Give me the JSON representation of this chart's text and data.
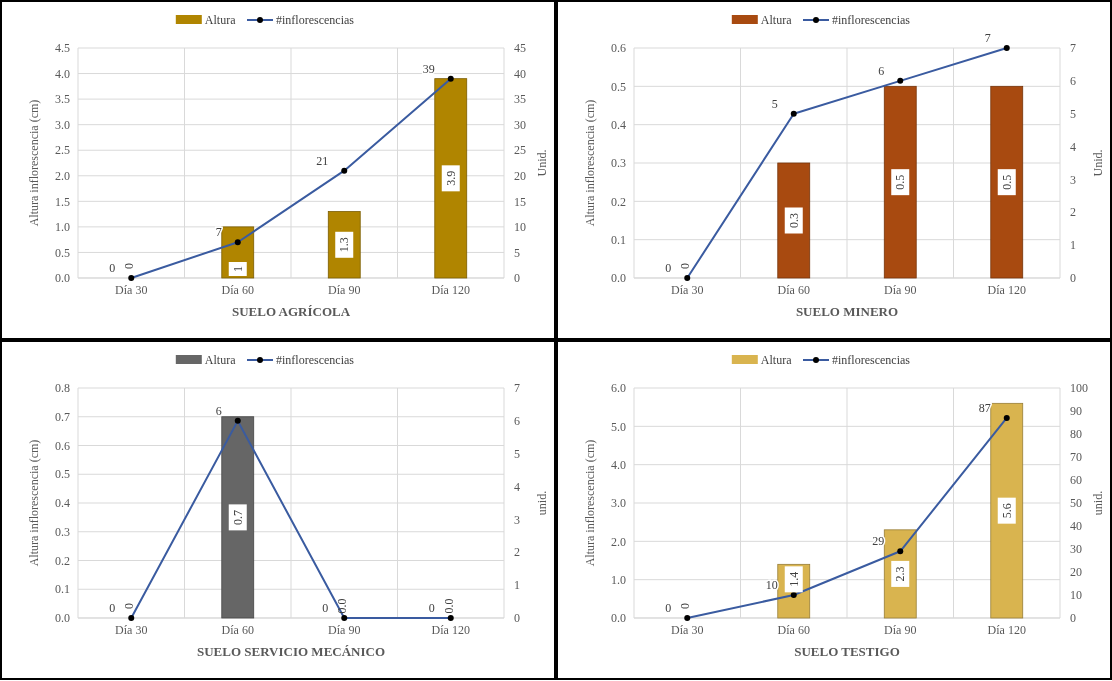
{
  "chart_data": [
    {
      "type": "bar",
      "xlabel": "SUELO AGRÍCOLA",
      "ylabel": "Altura inflorescencia (cm)",
      "y2label": "Unid.",
      "categories": [
        "Día 30",
        "Día 60",
        "Día 90",
        "Día 120"
      ],
      "series": [
        {
          "name": "Altura",
          "color": "#b08500",
          "values": [
            0,
            1,
            1.3,
            3.9
          ],
          "value_labels": [
            "0",
            "1",
            "1.3",
            "3.9"
          ]
        },
        {
          "name": "#inflorescencias",
          "type": "line",
          "axis": "y2",
          "color": "#3a5ba0",
          "values": [
            0,
            7,
            21,
            39
          ],
          "value_labels": [
            "0",
            "7",
            "21",
            "39"
          ]
        }
      ],
      "ylim": [
        0,
        4.5
      ],
      "yticks": [
        {
          "value": 0,
          "label": "0.0"
        },
        0.5,
        {
          "value": 1,
          "label": "1.0"
        },
        1.5,
        {
          "value": 2,
          "label": "2.0"
        },
        2.5,
        {
          "value": 3,
          "label": "3.0"
        },
        3.5,
        {
          "value": 4,
          "label": "4.0"
        },
        4.5
      ],
      "y2lim": [
        0,
        45
      ],
      "y2ticks": [
        0,
        5,
        10,
        15,
        20,
        25,
        30,
        35,
        40,
        45
      ],
      "grid": true,
      "legend": "top",
      "marker": "circle",
      "line_style": "solid"
    },
    {
      "type": "bar",
      "xlabel": "SUELO MINERO",
      "ylabel": "Altura inflorescencia (cm)",
      "y2label": "Unid.",
      "categories": [
        "Día 30",
        "Día 60",
        "Día 90",
        "Día 120"
      ],
      "series": [
        {
          "name": "Altura",
          "color": "#a84a10",
          "values": [
            0,
            0.3,
            0.5,
            0.5
          ],
          "value_labels": [
            "0",
            "0.3",
            "0.5",
            "0.5"
          ]
        },
        {
          "name": "#inflorescencias",
          "type": "line",
          "axis": "y2",
          "color": "#3a5ba0",
          "values": [
            0,
            5,
            6,
            7
          ],
          "value_labels": [
            "0",
            "5",
            "6",
            "7"
          ]
        }
      ],
      "ylim": [
        0,
        0.6
      ],
      "yticks": [
        {
          "value": 0,
          "label": "0.0"
        },
        0.1,
        0.2,
        0.3,
        0.4,
        0.5,
        0.6
      ],
      "y2lim": [
        0,
        7
      ],
      "y2ticks": [
        0,
        1,
        2,
        3,
        4,
        5,
        6,
        7
      ],
      "grid": true,
      "legend": "top",
      "marker": "circle",
      "line_style": "solid"
    },
    {
      "type": "bar",
      "xlabel": "SUELO SERVICIO MECÁNICO",
      "ylabel": "Altura inflorescencia (cm)",
      "y2label": "unid.",
      "categories": [
        "Día 30",
        "Día 60",
        "Día 90",
        "Día 120"
      ],
      "series": [
        {
          "name": "Altura",
          "color": "#666666",
          "values": [
            0,
            0.7,
            0,
            0
          ],
          "value_labels": [
            "0",
            "0.7",
            "0.0",
            "0.0"
          ]
        },
        {
          "name": "#inflorescencias",
          "type": "line",
          "axis": "y2",
          "color": "#3a5ba0",
          "values": [
            0,
            6,
            0,
            0
          ],
          "value_labels": [
            "0",
            "6",
            "0",
            "0"
          ]
        }
      ],
      "ylim": [
        0,
        0.8
      ],
      "yticks": [
        {
          "value": 0,
          "label": "0.0"
        },
        0.1,
        0.2,
        0.3,
        0.4,
        0.5,
        0.6,
        0.7,
        0.8
      ],
      "y2lim": [
        0,
        7
      ],
      "y2ticks": [
        0,
        1,
        2,
        3,
        4,
        5,
        6,
        7
      ],
      "grid": true,
      "legend": "top",
      "marker": "circle",
      "line_style": "solid"
    },
    {
      "type": "bar",
      "xlabel": "SUELO TESTIGO",
      "ylabel": "Altura inflorescencia (cm)",
      "y2label": "unid.",
      "categories": [
        "Día 30",
        "Día 60",
        "Día 90",
        "Día 120"
      ],
      "series": [
        {
          "name": "Altura",
          "color": "#d9b44f",
          "values": [
            0,
            1.4,
            2.3,
            5.6
          ],
          "value_labels": [
            "0",
            "1.4",
            "2.3",
            "5.6"
          ]
        },
        {
          "name": "#inflorescencias",
          "type": "line",
          "axis": "y2",
          "color": "#3a5ba0",
          "values": [
            0,
            10,
            29,
            87
          ],
          "value_labels": [
            "0",
            "10",
            "29",
            "87"
          ]
        }
      ],
      "ylim": [
        0,
        6
      ],
      "yticks": [
        {
          "value": 0,
          "label": "0.0"
        },
        {
          "value": 1,
          "label": "1.0"
        },
        {
          "value": 2,
          "label": "2.0"
        },
        {
          "value": 3,
          "label": "3.0"
        },
        {
          "value": 4,
          "label": "4.0"
        },
        {
          "value": 5,
          "label": "5.0"
        },
        {
          "value": 6,
          "label": "6.0"
        }
      ],
      "y2lim": [
        0,
        100
      ],
      "y2ticks": [
        0,
        10,
        20,
        30,
        40,
        50,
        60,
        70,
        80,
        90,
        100
      ],
      "grid": true,
      "legend": "top",
      "marker": "circle",
      "line_style": "solid"
    }
  ]
}
